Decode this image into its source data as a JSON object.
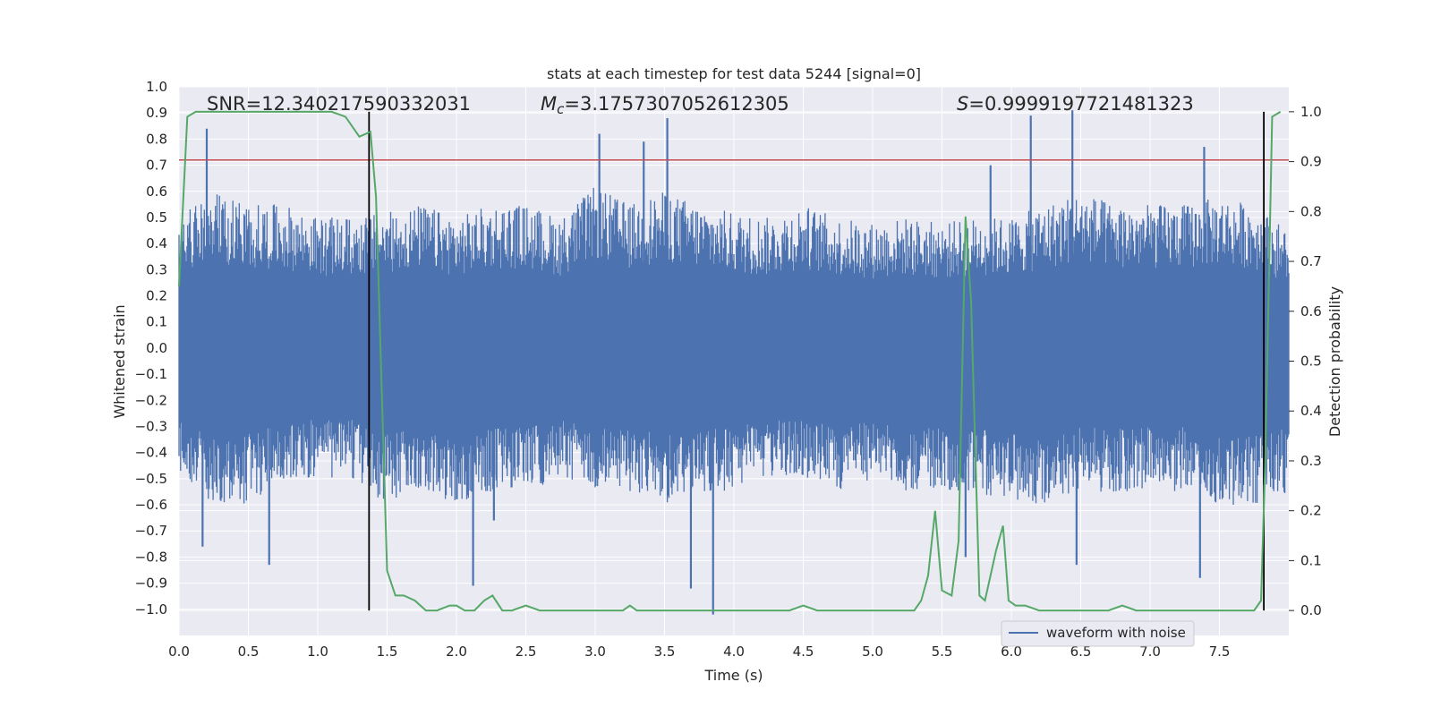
{
  "chart_data": {
    "type": "line",
    "title": "stats at each timestep for test data 5244 [signal=0]",
    "xlabel": "Time (s)",
    "ylabel_left": "Whitened strain",
    "ylabel_right": "Detection probability",
    "annotations": {
      "snr": "SNR=12.340217590332031",
      "mc_symbol": "M",
      "mc_sub": "c",
      "mc_value": "=3.1757307052612305",
      "s_symbol": "S",
      "s_value": "=0.9999197721481323"
    },
    "xlim": [
      0,
      8
    ],
    "ylim_left": [
      -1.1,
      1.0
    ],
    "ylim_right": [
      -0.05,
      1.05
    ],
    "x_ticks": [
      "0.0",
      "0.5",
      "1.0",
      "1.5",
      "2.0",
      "2.5",
      "3.0",
      "3.5",
      "4.0",
      "4.5",
      "5.0",
      "5.5",
      "6.0",
      "6.5",
      "7.0",
      "7.5"
    ],
    "y_ticks_left": [
      "1.0",
      "0.9",
      "0.8",
      "0.7",
      "0.6",
      "0.5",
      "0.4",
      "0.3",
      "0.2",
      "0.1",
      "0.0",
      "−0.1",
      "−0.2",
      "−0.3",
      "−0.4",
      "−0.5",
      "−0.6",
      "−0.7",
      "−0.8",
      "−0.9",
      "−1.0"
    ],
    "y_ticks_right": [
      "1.0",
      "0.9",
      "0.8",
      "0.7",
      "0.6",
      "0.5",
      "0.4",
      "0.3",
      "0.2",
      "0.1",
      "0.0"
    ],
    "threshold_strain": 0.72,
    "vertical_markers_s": [
      1.37,
      7.82
    ],
    "legend_position": "lower-right",
    "series": [
      {
        "name": "waveform with noise",
        "color": "#4c72b0",
        "envelope_x": [
          0,
          0.25,
          0.5,
          0.75,
          1,
          1.25,
          1.5,
          1.75,
          2,
          2.25,
          2.5,
          2.75,
          3,
          3.25,
          3.5,
          3.75,
          4,
          4.25,
          4.5,
          4.75,
          5,
          5.25,
          5.5,
          5.75,
          6,
          6.25,
          6.5,
          6.75,
          7,
          7.25,
          7.5,
          7.75,
          8
        ],
        "envelope_upper": [
          0.5,
          0.6,
          0.55,
          0.55,
          0.5,
          0.5,
          0.52,
          0.55,
          0.5,
          0.55,
          0.55,
          0.5,
          0.62,
          0.55,
          0.6,
          0.55,
          0.52,
          0.5,
          0.55,
          0.5,
          0.48,
          0.5,
          0.48,
          0.5,
          0.5,
          0.55,
          0.6,
          0.55,
          0.55,
          0.55,
          0.58,
          0.55,
          0.45
        ],
        "envelope_lower": [
          -0.5,
          -0.6,
          -0.6,
          -0.5,
          -0.5,
          -0.5,
          -0.6,
          -0.55,
          -0.6,
          -0.55,
          -0.55,
          -0.5,
          -0.55,
          -0.55,
          -0.6,
          -0.55,
          -0.55,
          -0.5,
          -0.5,
          -0.55,
          -0.5,
          -0.55,
          -0.55,
          -0.55,
          -0.6,
          -0.6,
          -0.55,
          -0.55,
          -0.55,
          -0.55,
          -0.6,
          -0.6,
          -0.55
        ],
        "peaks": [
          {
            "t": 0.2,
            "v": 0.84
          },
          {
            "t": 0.17,
            "v": -0.76
          },
          {
            "t": 0.65,
            "v": -0.83
          },
          {
            "t": 2.12,
            "v": -0.91
          },
          {
            "t": 2.27,
            "v": -0.66
          },
          {
            "t": 3.03,
            "v": 0.82
          },
          {
            "t": 3.52,
            "v": 0.88
          },
          {
            "t": 3.35,
            "v": 0.79
          },
          {
            "t": 3.69,
            "v": -0.92
          },
          {
            "t": 3.85,
            "v": -1.02
          },
          {
            "t": 6.14,
            "v": 0.89
          },
          {
            "t": 6.44,
            "v": 0.91
          },
          {
            "t": 7.39,
            "v": 0.77
          },
          {
            "t": 7.36,
            "v": -0.88
          },
          {
            "t": 6.47,
            "v": -0.83
          },
          {
            "t": 5.67,
            "v": -0.8
          },
          {
            "t": 5.85,
            "v": 0.7
          }
        ]
      },
      {
        "name": "detection probability",
        "color": "#55a868",
        "axis": "right",
        "x": [
          0,
          0.06,
          0.12,
          0.2,
          0.3,
          0.5,
          0.7,
          0.9,
          1.1,
          1.2,
          1.3,
          1.38,
          1.42,
          1.5,
          1.56,
          1.62,
          1.7,
          1.78,
          1.86,
          1.95,
          2.0,
          2.06,
          2.13,
          2.2,
          2.26,
          2.33,
          2.4,
          2.5,
          2.6,
          2.8,
          3.0,
          3.1,
          3.2,
          3.25,
          3.3,
          3.4,
          3.6,
          3.8,
          4.0,
          4.2,
          4.4,
          4.5,
          4.6,
          4.8,
          5.0,
          5.1,
          5.2,
          5.3,
          5.35,
          5.4,
          5.45,
          5.5,
          5.57,
          5.62,
          5.67,
          5.71,
          5.77,
          5.81,
          5.89,
          5.94,
          5.98,
          6.03,
          6.1,
          6.2,
          6.3,
          6.5,
          6.7,
          6.8,
          6.9,
          7.0,
          7.2,
          7.4,
          7.6,
          7.75,
          7.8,
          7.83,
          7.88,
          7.94
        ],
        "y": [
          0.65,
          0.99,
          1.0,
          1.0,
          1.0,
          1.0,
          1.0,
          1.0,
          1.0,
          0.99,
          0.95,
          0.96,
          0.83,
          0.08,
          0.03,
          0.03,
          0.02,
          0.0,
          0.0,
          0.01,
          0.01,
          0.0,
          0.0,
          0.02,
          0.03,
          0.0,
          0.0,
          0.01,
          0.0,
          0.0,
          0.0,
          0.0,
          0.0,
          0.01,
          0.0,
          0.0,
          0.0,
          0.0,
          0.0,
          0.0,
          0.0,
          0.01,
          0.0,
          0.0,
          0.0,
          0.0,
          0.0,
          0.0,
          0.02,
          0.07,
          0.2,
          0.04,
          0.03,
          0.14,
          0.79,
          0.62,
          0.03,
          0.02,
          0.12,
          0.17,
          0.02,
          0.01,
          0.01,
          0.0,
          0.0,
          0.0,
          0.0,
          0.01,
          0.0,
          0.0,
          0.0,
          0.0,
          0.0,
          0.0,
          0.02,
          0.3,
          0.99,
          1.0
        ]
      }
    ]
  }
}
